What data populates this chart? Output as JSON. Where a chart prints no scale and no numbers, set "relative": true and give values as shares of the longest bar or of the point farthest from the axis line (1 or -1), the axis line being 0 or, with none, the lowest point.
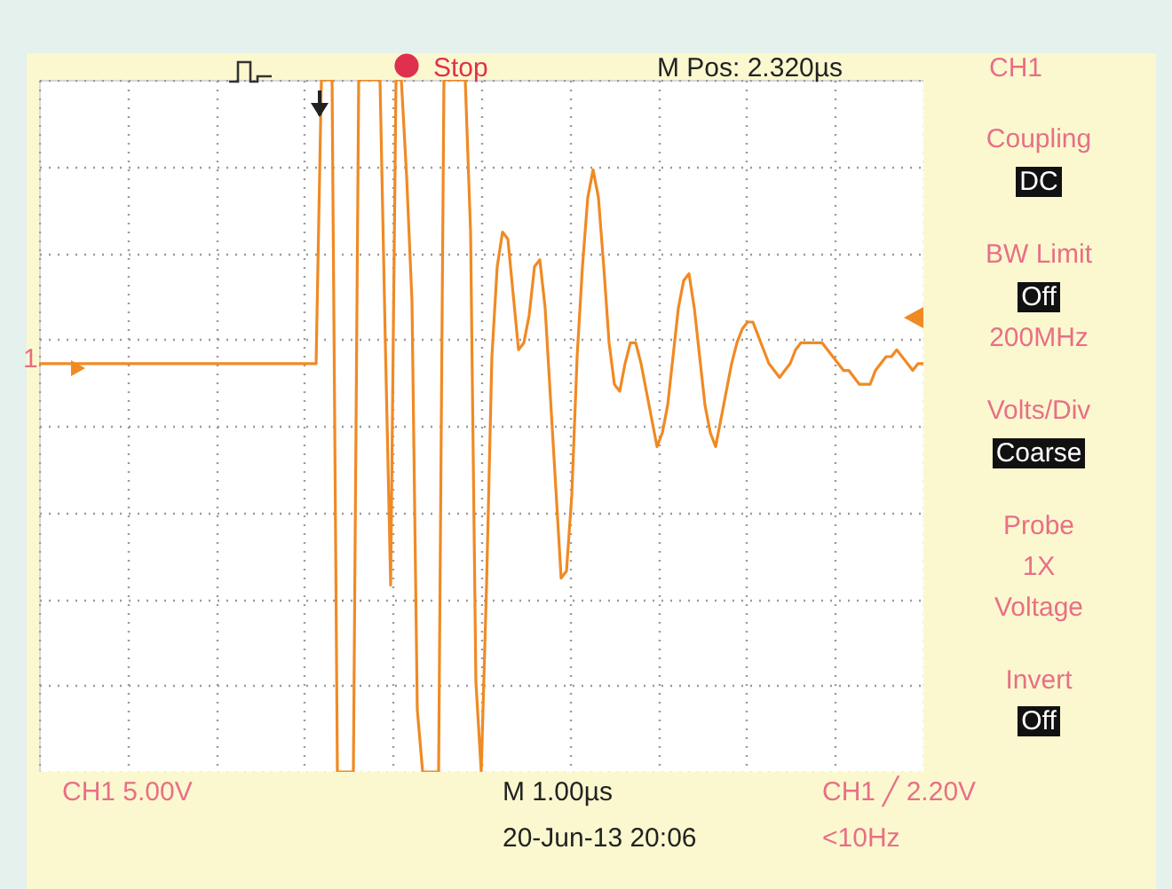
{
  "chart_data": {
    "type": "line",
    "relative": true,
    "grid": true,
    "color": "#f08a24",
    "categories": [
      null,
      null,
      null,
      null,
      null,
      null,
      null,
      null,
      null,
      null,
      null,
      null,
      null,
      null,
      null,
      null,
      null,
      null,
      null,
      null,
      null,
      null,
      null,
      null,
      null,
      null,
      null,
      null,
      null,
      null,
      null,
      null,
      null,
      null,
      null,
      null,
      null,
      null,
      null,
      null,
      null,
      null,
      null,
      null,
      null,
      null,
      null,
      null,
      null,
      null,
      null,
      null,
      null,
      null,
      null,
      null,
      null,
      null,
      null,
      null,
      null,
      null,
      null,
      null,
      null,
      null,
      null,
      null,
      null,
      null,
      null,
      null,
      null,
      null,
      null,
      null,
      null,
      null,
      null,
      null,
      null,
      null,
      null,
      null,
      null,
      null,
      null,
      null,
      null,
      null,
      null,
      null,
      null,
      null,
      null,
      null,
      null,
      null,
      null,
      null,
      null,
      null,
      null,
      null,
      null,
      null,
      null,
      null,
      null,
      null,
      null,
      null,
      null,
      null,
      null,
      null,
      null,
      null,
      null,
      null,
      null,
      null,
      null,
      null,
      null,
      null,
      null,
      null,
      null,
      null,
      null,
      null,
      null,
      null,
      null,
      null,
      null,
      null,
      null,
      null,
      null,
      null,
      null,
      null,
      null,
      null,
      null,
      null,
      null,
      null,
      null,
      null,
      null,
      null,
      null,
      null,
      null,
      null,
      null,
      null,
      null,
      null,
      null,
      null,
      null,
      null,
      null
    ],
    "values": [
      0.59,
      0.59,
      0.59,
      0.59,
      0.59,
      0.59,
      0.59,
      0.59,
      0.59,
      0.59,
      0.59,
      0.59,
      0.59,
      0.59,
      0.59,
      0.59,
      0.59,
      0.59,
      0.59,
      0.59,
      0.59,
      0.59,
      0.59,
      0.59,
      0.59,
      0.59,
      0.59,
      0.59,
      0.59,
      0.59,
      0.59,
      0.59,
      0.59,
      0.59,
      0.59,
      0.59,
      0.59,
      0.59,
      0.59,
      0.59,
      0.59,
      0.59,
      0.59,
      0.59,
      0.59,
      0.59,
      0.59,
      0.59,
      0.59,
      0.59,
      0.59,
      0.59,
      0.59,
      1,
      1,
      1,
      0,
      0,
      0,
      0,
      1,
      1,
      1,
      1,
      1,
      0.62,
      0.27,
      1,
      1,
      0.86,
      0.68,
      0.09,
      0,
      0,
      0,
      0,
      1,
      1,
      1,
      1,
      1,
      0.78,
      0.13,
      0,
      0.27,
      0.6,
      0.73,
      0.78,
      0.77,
      0.69,
      0.61,
      0.62,
      0.66,
      0.73,
      0.74,
      0.67,
      0.54,
      0.41,
      0.28,
      0.29,
      0.4,
      0.6,
      0.73,
      0.83,
      0.87,
      0.83,
      0.73,
      0.62,
      0.56,
      0.55,
      0.59,
      0.62,
      0.62,
      0.59,
      0.55,
      0.51,
      0.47,
      0.49,
      0.53,
      0.6,
      0.67,
      0.71,
      0.72,
      0.67,
      0.6,
      0.53,
      0.49,
      0.47,
      0.51,
      0.55,
      0.59,
      0.62,
      0.64,
      0.65,
      0.65,
      0.63,
      0.61,
      0.59,
      0.58,
      0.57,
      0.58,
      0.59,
      0.61,
      0.62,
      0.62,
      0.62,
      0.62,
      0.62,
      0.61,
      0.6,
      0.59,
      0.58,
      0.58,
      0.57,
      0.56,
      0.56,
      0.56,
      0.58,
      0.59,
      0.6,
      0.6,
      0.61,
      0.6,
      0.59,
      0.58,
      0.59,
      0.59
    ],
    "annotations": [
      "Stop",
      "M Pos: 2.320µs",
      "CH1",
      "Coupling",
      "DC",
      "BW Limit",
      "Off",
      "200MHz",
      "Volts/Div",
      "Coarse",
      "Probe",
      "1X",
      "Voltage",
      "Invert",
      "Off",
      "CH1  5.00V",
      "M 1.00µs",
      "20-Jun-13 20:06",
      "CH1 ╱ 2.20V",
      "<10Hz",
      "1"
    ]
  }
}
